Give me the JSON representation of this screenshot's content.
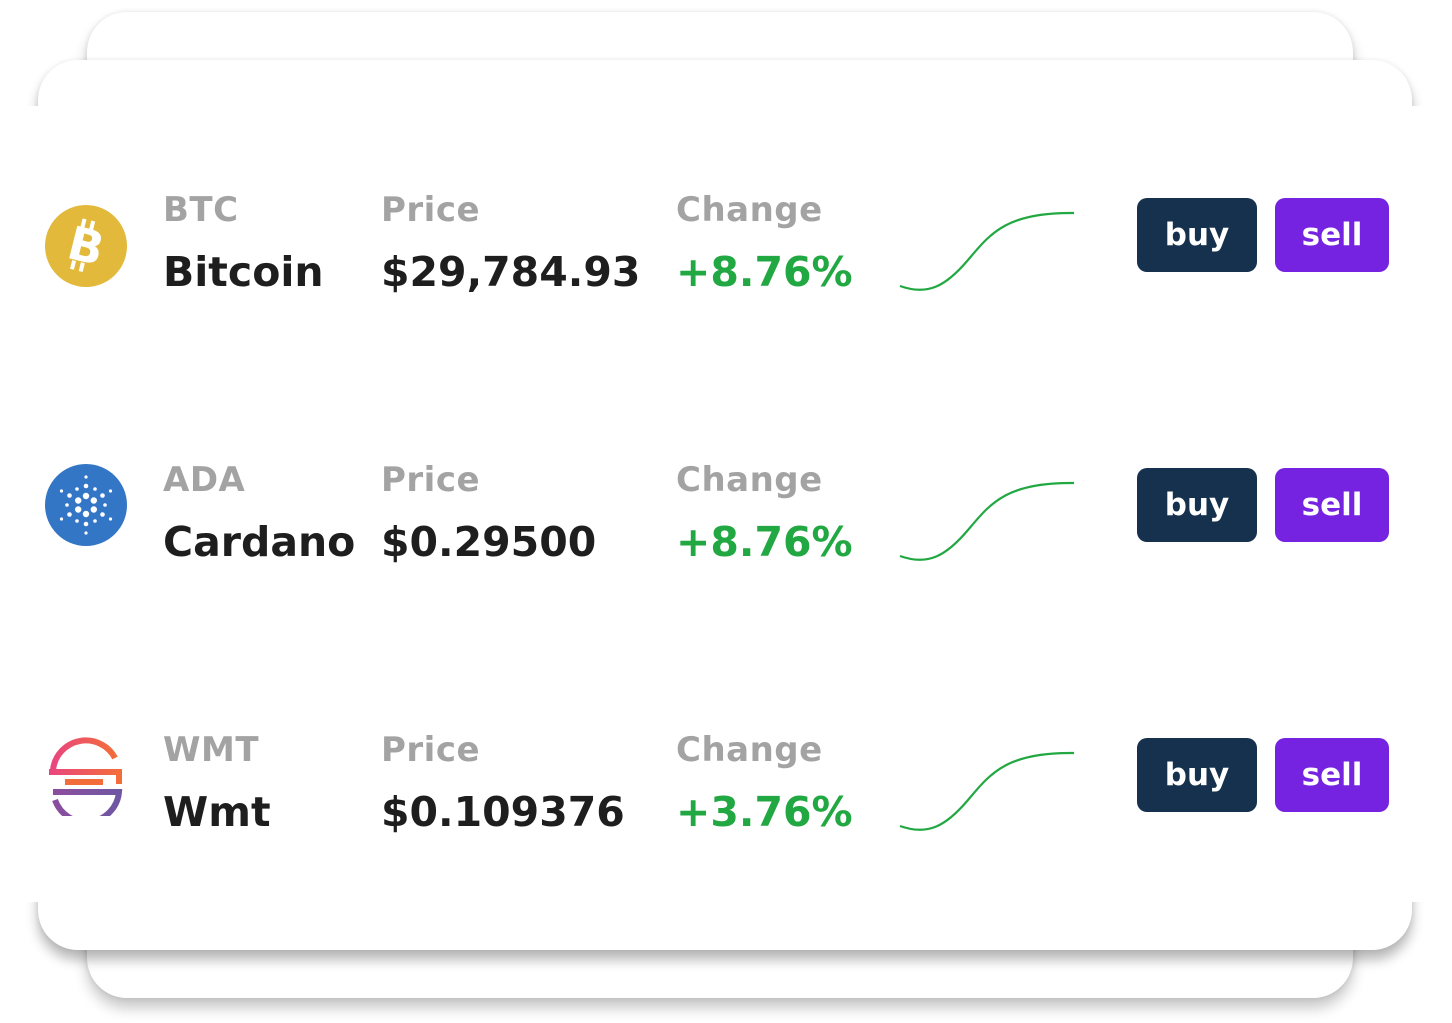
{
  "colors": {
    "buy_button": "#15314d",
    "sell_button": "#7523e0",
    "positive_change": "#22a842",
    "label_gray": "#a3a3a3",
    "value_dark": "#1e1e1e"
  },
  "assets": [
    {
      "icon": "bitcoin-logo-icon",
      "ticker": "BTC",
      "name": "Bitcoin",
      "price_label": "Price",
      "price": "$29,784.93",
      "change_label": "Change",
      "change": "+8.76%",
      "trend": "up",
      "buy_label": "buy",
      "sell_label": "sell"
    },
    {
      "icon": "cardano-logo-icon",
      "ticker": "ADA",
      "name": "Cardano",
      "price_label": "Price",
      "price": "$0.29500",
      "change_label": "Change",
      "change": "+8.76%",
      "trend": "up",
      "buy_label": "buy",
      "sell_label": "sell"
    },
    {
      "icon": "wmt-logo-icon",
      "ticker": "WMT",
      "name": "Wmt",
      "price_label": "Price",
      "price": "$0.109376",
      "change_label": "Change",
      "change": "+3.76%",
      "trend": "up",
      "buy_label": "buy",
      "sell_label": "sell"
    }
  ]
}
